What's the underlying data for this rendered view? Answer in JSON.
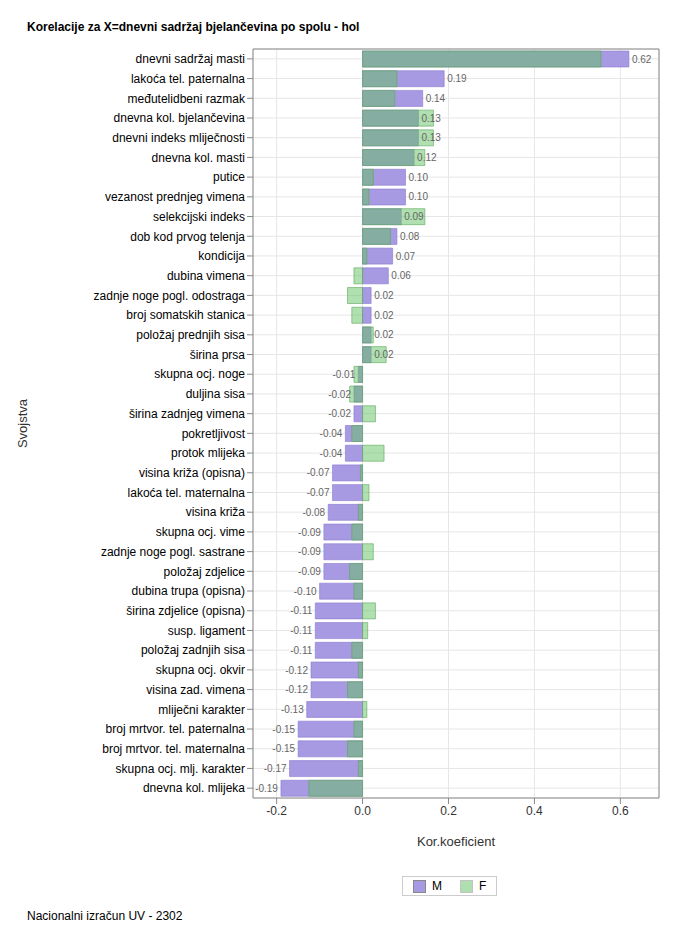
{
  "chart_data": {
    "type": "bar",
    "orientation": "horizontal",
    "title": "Korelacije za X=dnevni sadržaj bjelančevina po spolu - hol",
    "x_label": "Kor.koeficient",
    "y_label": "Svojstva",
    "annotations": [
      "Nacionalni izračun UV - 2302"
    ],
    "grid": true,
    "legend": "bottom",
    "categories": [
      "dnevni sadržaj masti",
      "lakoća tel. paternalna",
      "međutelidbeni razmak",
      "dnevna kol. bjelančevina",
      "dnevni indeks mliječnosti",
      "dnevna kol. masti",
      "putice",
      "vezanost prednjeg vimena",
      "selekcijski indeks",
      "dob kod prvog telenja",
      "kondicija",
      "dubina vimena",
      "zadnje noge pogl. odostraga",
      "broj somatskih stanica",
      "položaj prednjih sisa",
      "širina prsa",
      "skupna ocj. noge",
      "duljina sisa",
      "širina zadnjeg vimena",
      "pokretljivost",
      "protok mlijeka",
      "visina križa (opisna)",
      "lakoća tel. maternalna",
      "visina križa",
      "skupna ocj. vime",
      "zadnje noge pogl. sastrane",
      "položaj zdjelice",
      "dubina trupa (opisna)",
      "širina zdjelice (opisna)",
      "susp. ligament",
      "položaj zadnjih sisa",
      "skupna ocj. okvir",
      "visina zad. vimena",
      "mliječni karakter",
      "broj mrtvor. tel. paternalna",
      "broj mrtvor. tel. maternalna",
      "skupna ocj. mlj. karakter",
      "dnevna kol. mlijeka"
    ],
    "series": [
      {
        "name": "M",
        "color": "#a899e3",
        "data_labels": true,
        "values": [
          0.62,
          0.19,
          0.14,
          0.13,
          0.13,
          0.12,
          0.1,
          0.1,
          0.09,
          0.08,
          0.07,
          0.06,
          0.02,
          0.02,
          0.02,
          0.02,
          -0.01,
          -0.02,
          -0.02,
          -0.04,
          -0.04,
          -0.07,
          -0.07,
          -0.08,
          -0.09,
          -0.09,
          -0.09,
          -0.1,
          -0.11,
          -0.11,
          -0.11,
          -0.12,
          -0.12,
          -0.13,
          -0.15,
          -0.15,
          -0.17,
          -0.19
        ],
        "value_labels": [
          "0.62",
          "0.19",
          "0.14",
          "0.13",
          "0.13",
          "0.12",
          "0.10",
          "0.10",
          "0.09",
          "0.08",
          "0.07",
          "0.06",
          "0.02",
          "0.02",
          "0.02",
          "0.02",
          "-0.01",
          "-0.02",
          "-0.02",
          "-0.04",
          "-0.04",
          "-0.07",
          "-0.07",
          "-0.08",
          "-0.09",
          "-0.09",
          "-0.09",
          "-0.10",
          "-0.11",
          "-0.11",
          "-0.11",
          "-0.12",
          "-0.12",
          "-0.13",
          "-0.15",
          "-0.15",
          "-0.17",
          "-0.19"
        ]
      },
      {
        "name": "F",
        "color": "#61c161",
        "values": [
          0.555,
          0.08,
          0.075,
          0.165,
          0.165,
          0.145,
          0.025,
          0.015,
          0.145,
          0.065,
          0.01,
          -0.02,
          -0.035,
          -0.025,
          0.025,
          0.055,
          -0.02,
          -0.03,
          0.03,
          -0.025,
          0.05,
          -0.005,
          0.015,
          -0.01,
          -0.025,
          0.025,
          -0.03,
          -0.02,
          0.03,
          0.012,
          -0.025,
          -0.01,
          -0.035,
          0.01,
          -0.02,
          -0.035,
          -0.01,
          -0.125
        ]
      }
    ],
    "xlim": [
      -0.255,
      0.69
    ],
    "xticks": [
      -0.2,
      {
        "value": 0,
        "label": "0.0"
      },
      0.2,
      0.4,
      0.6
    ]
  }
}
